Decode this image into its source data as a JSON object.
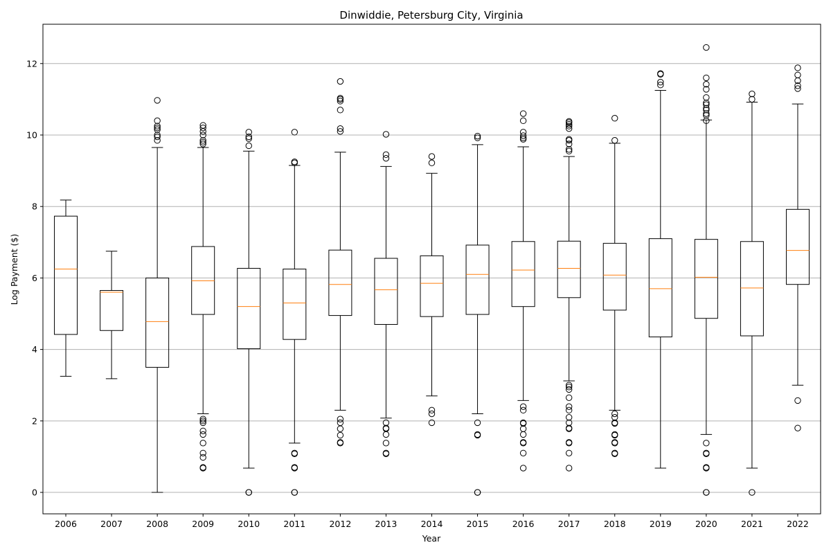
{
  "chart_data": {
    "type": "box",
    "title": "Dinwiddie, Petersburg City, Virginia",
    "xlabel": "Year",
    "ylabel": "Log Payment ($)",
    "ylim": [
      -0.6,
      13.1
    ],
    "yticks": [
      0,
      2,
      4,
      6,
      8,
      10,
      12
    ],
    "grid": "y",
    "colors": {
      "box": "#000000",
      "median": "#ff7f0e",
      "grid": "#b0b0b0"
    },
    "categories": [
      "2006",
      "2007",
      "2008",
      "2009",
      "2010",
      "2011",
      "2012",
      "2013",
      "2014",
      "2015",
      "2016",
      "2017",
      "2018",
      "2019",
      "2020",
      "2021",
      "2022"
    ],
    "boxes": [
      {
        "year": "2006",
        "whislo": 3.25,
        "q1": 4.42,
        "med": 6.25,
        "q3": 7.73,
        "whishi": 8.18,
        "fliers": []
      },
      {
        "year": "2007",
        "whislo": 3.18,
        "q1": 4.53,
        "med": 5.6,
        "q3": 5.65,
        "whishi": 6.75,
        "fliers": []
      },
      {
        "year": "2008",
        "whislo": 0.0,
        "q1": 3.5,
        "med": 4.78,
        "q3": 6.0,
        "whishi": 9.65,
        "fliers": [
          9.85,
          9.95,
          10.0,
          10.15,
          10.2,
          10.25,
          10.4,
          10.97
        ]
      },
      {
        "year": "2009",
        "whislo": 2.2,
        "q1": 4.98,
        "med": 5.92,
        "q3": 6.88,
        "whishi": 9.65,
        "fliers": [
          0.68,
          0.7,
          0.98,
          1.1,
          1.38,
          1.62,
          1.72,
          1.95,
          2.0,
          2.05,
          9.75,
          9.8,
          9.85,
          10.0,
          10.1,
          10.2,
          10.27
        ]
      },
      {
        "year": "2010",
        "whislo": 0.68,
        "q1": 4.02,
        "med": 5.2,
        "q3": 6.27,
        "whishi": 9.55,
        "fliers": [
          0.0,
          0.0,
          9.7,
          9.9,
          9.95,
          10.08
        ]
      },
      {
        "year": "2011",
        "whislo": 1.38,
        "q1": 4.28,
        "med": 5.3,
        "q3": 6.25,
        "whishi": 9.15,
        "fliers": [
          0.0,
          0.0,
          0.68,
          0.7,
          1.08,
          1.1,
          9.22,
          9.25,
          10.08
        ]
      },
      {
        "year": "2012",
        "whislo": 2.3,
        "q1": 4.95,
        "med": 5.82,
        "q3": 6.78,
        "whishi": 9.52,
        "fliers": [
          1.38,
          1.4,
          1.6,
          1.78,
          1.95,
          2.05,
          10.1,
          10.18,
          10.7,
          10.95,
          11.0,
          11.03,
          11.5
        ]
      },
      {
        "year": "2013",
        "whislo": 2.08,
        "q1": 4.7,
        "med": 5.67,
        "q3": 6.55,
        "whishi": 9.12,
        "fliers": [
          1.08,
          1.1,
          1.38,
          1.62,
          1.78,
          1.8,
          1.95,
          9.35,
          9.45,
          10.02
        ]
      },
      {
        "year": "2014",
        "whislo": 2.7,
        "q1": 4.92,
        "med": 5.85,
        "q3": 6.62,
        "whishi": 8.93,
        "fliers": [
          1.95,
          2.2,
          2.3,
          9.22,
          9.4
        ]
      },
      {
        "year": "2015",
        "whislo": 2.2,
        "q1": 4.98,
        "med": 6.1,
        "q3": 6.92,
        "whishi": 9.73,
        "fliers": [
          0.0,
          0.0,
          1.6,
          1.62,
          1.95,
          9.92,
          9.97
        ]
      },
      {
        "year": "2016",
        "whislo": 2.57,
        "q1": 5.2,
        "med": 6.22,
        "q3": 7.02,
        "whishi": 9.67,
        "fliers": [
          0.68,
          1.1,
          1.38,
          1.4,
          1.62,
          1.78,
          1.93,
          1.95,
          2.3,
          2.4,
          9.88,
          9.92,
          9.98,
          10.08,
          10.4,
          10.6
        ]
      },
      {
        "year": "2017",
        "whislo": 3.12,
        "q1": 5.45,
        "med": 6.27,
        "q3": 7.03,
        "whishi": 9.4,
        "fliers": [
          0.68,
          1.1,
          1.38,
          1.4,
          1.78,
          1.8,
          1.95,
          2.1,
          2.3,
          2.4,
          2.65,
          2.88,
          2.95,
          3.0,
          9.55,
          9.6,
          9.75,
          9.85,
          9.88,
          10.18,
          10.25,
          10.3,
          10.35,
          10.38
        ]
      },
      {
        "year": "2018",
        "whislo": 2.3,
        "q1": 5.1,
        "med": 6.08,
        "q3": 6.97,
        "whishi": 9.77,
        "fliers": [
          1.08,
          1.1,
          1.38,
          1.4,
          1.6,
          1.62,
          1.93,
          1.95,
          2.1,
          2.2,
          9.85,
          10.47
        ]
      },
      {
        "year": "2019",
        "whislo": 0.68,
        "q1": 4.35,
        "med": 5.7,
        "q3": 7.1,
        "whishi": 11.25,
        "fliers": [
          11.4,
          11.48,
          11.7,
          11.72
        ]
      },
      {
        "year": "2020",
        "whislo": 1.62,
        "q1": 4.87,
        "med": 6.02,
        "q3": 7.08,
        "whishi": 10.42,
        "fliers": [
          0.0,
          0.0,
          0.68,
          0.7,
          1.08,
          1.1,
          1.38,
          10.4,
          10.55,
          10.6,
          10.7,
          10.75,
          10.85,
          10.9,
          11.05,
          11.28,
          11.42,
          11.6,
          12.45
        ]
      },
      {
        "year": "2021",
        "whislo": 0.68,
        "q1": 4.38,
        "med": 5.72,
        "q3": 7.02,
        "whishi": 10.92,
        "fliers": [
          0.0,
          11.0,
          11.15
        ]
      },
      {
        "year": "2022",
        "whislo": 3.0,
        "q1": 5.82,
        "med": 6.77,
        "q3": 7.92,
        "whishi": 10.87,
        "fliers": [
          1.8,
          2.57,
          11.3,
          11.38,
          11.52,
          11.68,
          11.88
        ]
      }
    ]
  }
}
